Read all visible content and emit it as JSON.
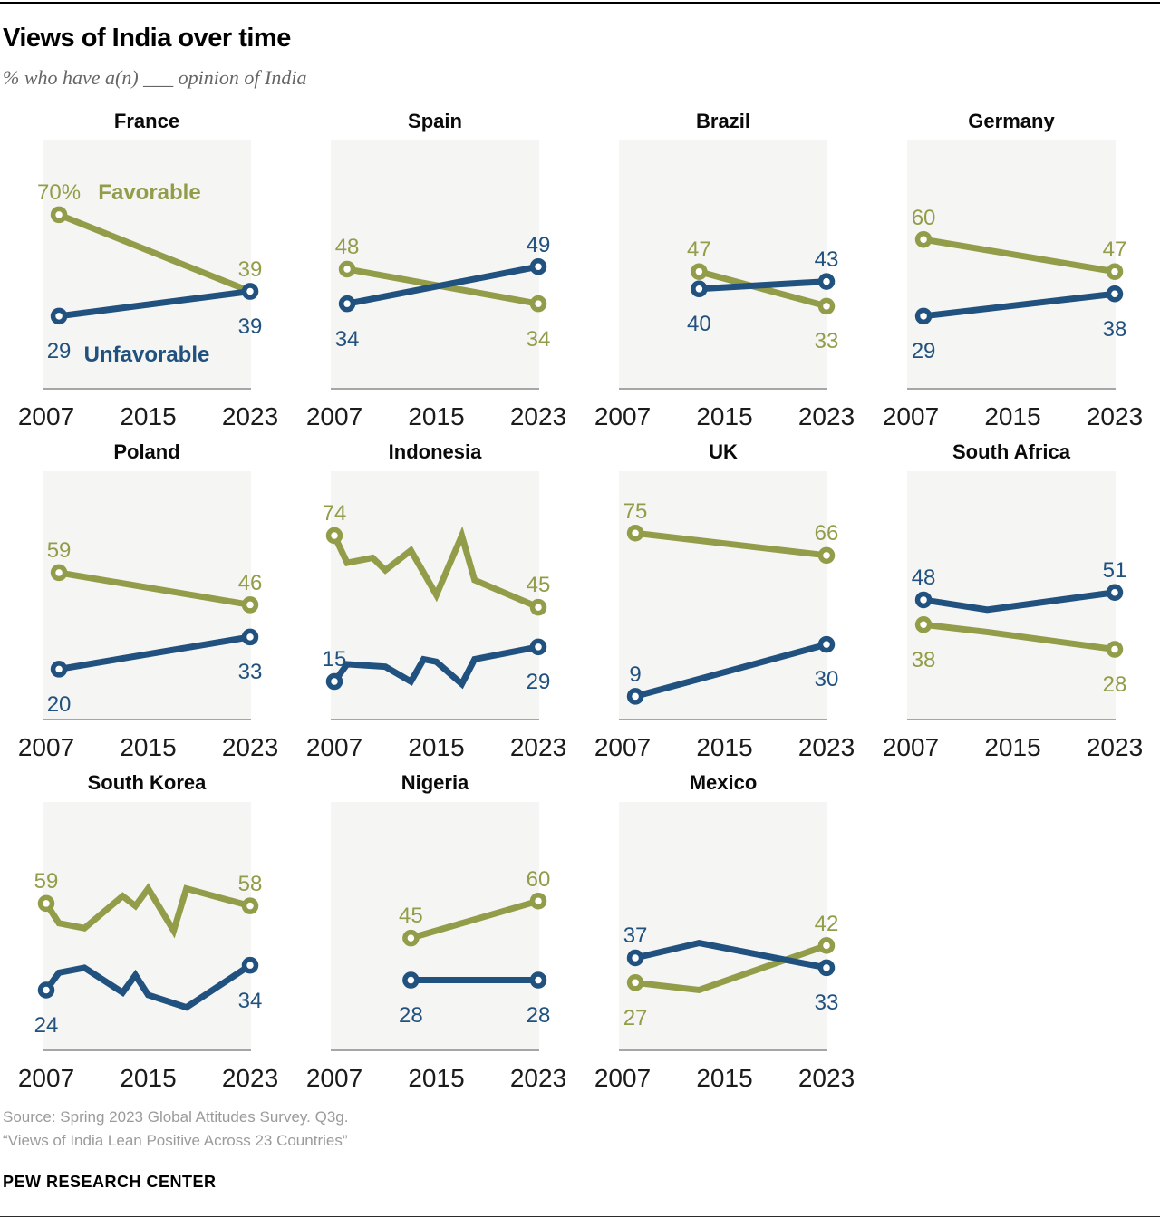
{
  "header": {
    "title": "Views of India over time",
    "subtitle": "% who have a(n) ___ opinion of India"
  },
  "colors": {
    "favorable": "#939D49",
    "unfavorable": "#21517E",
    "panel_bg": "#f5f5f3",
    "axis_line": "#a6a6a6",
    "subtitle_gray": "#666666",
    "source_gray": "#9b9b9b"
  },
  "legend": {
    "favorable": "Favorable",
    "unfavorable": "Unfavorable"
  },
  "footer": {
    "source_line1": "Source: Spring 2023 Global Attitudes Survey. Q3g.",
    "source_line2": "“Views of India Lean Positive Across 23 Countries”",
    "brand": "PEW RESEARCH CENTER"
  },
  "chart_data": {
    "type": "line",
    "x_range": [
      2007,
      2023
    ],
    "y_range": [
      0,
      100
    ],
    "x_ticks": [
      "2007",
      "2015",
      "2023"
    ],
    "x_tick_years": [
      2007,
      2015,
      2023
    ],
    "grid": false,
    "panels": [
      {
        "country": "France",
        "show_series_legend": true,
        "series": [
          {
            "name": "Favorable",
            "points": [
              [
                2008,
                70
              ],
              [
                2023,
                39
              ]
            ],
            "labels": {
              "start": {
                "text": "70%",
                "pos": "above"
              },
              "end": {
                "text": "39",
                "pos": "above"
              }
            }
          },
          {
            "name": "Unfavorable",
            "points": [
              [
                2008,
                29
              ],
              [
                2023,
                39
              ]
            ],
            "labels": {
              "start": {
                "text": "29",
                "pos": "below"
              },
              "end": {
                "text": "39",
                "pos": "below"
              }
            }
          }
        ]
      },
      {
        "country": "Spain",
        "series": [
          {
            "name": "Favorable",
            "points": [
              [
                2008,
                48
              ],
              [
                2023,
                34
              ]
            ],
            "labels": {
              "start": {
                "text": "48",
                "pos": "above"
              },
              "end": {
                "text": "34",
                "pos": "below"
              }
            }
          },
          {
            "name": "Unfavorable",
            "points": [
              [
                2008,
                34
              ],
              [
                2023,
                49
              ]
            ],
            "labels": {
              "start": {
                "text": "34",
                "pos": "below"
              },
              "end": {
                "text": "49",
                "pos": "above"
              }
            }
          }
        ]
      },
      {
        "country": "Brazil",
        "series": [
          {
            "name": "Favorable",
            "points": [
              [
                2013,
                47
              ],
              [
                2023,
                33
              ]
            ],
            "labels": {
              "start": {
                "text": "47",
                "pos": "above"
              },
              "end": {
                "text": "33",
                "pos": "below"
              }
            }
          },
          {
            "name": "Unfavorable",
            "points": [
              [
                2013,
                40
              ],
              [
                2023,
                43
              ]
            ],
            "labels": {
              "start": {
                "text": "40",
                "pos": "below"
              },
              "end": {
                "text": "43",
                "pos": "above"
              }
            }
          }
        ]
      },
      {
        "country": "Germany",
        "series": [
          {
            "name": "Favorable",
            "points": [
              [
                2008,
                60
              ],
              [
                2023,
                47
              ]
            ],
            "labels": {
              "start": {
                "text": "60",
                "pos": "above"
              },
              "end": {
                "text": "47",
                "pos": "above"
              }
            }
          },
          {
            "name": "Unfavorable",
            "points": [
              [
                2008,
                29
              ],
              [
                2023,
                38
              ]
            ],
            "labels": {
              "start": {
                "text": "29",
                "pos": "below"
              },
              "end": {
                "text": "38",
                "pos": "below"
              }
            }
          }
        ]
      },
      {
        "country": "Poland",
        "series": [
          {
            "name": "Favorable",
            "points": [
              [
                2008,
                59
              ],
              [
                2023,
                46
              ]
            ],
            "labels": {
              "start": {
                "text": "59",
                "pos": "above"
              },
              "end": {
                "text": "46",
                "pos": "above"
              }
            }
          },
          {
            "name": "Unfavorable",
            "points": [
              [
                2008,
                20
              ],
              [
                2023,
                33
              ]
            ],
            "labels": {
              "start": {
                "text": "20",
                "pos": "below"
              },
              "end": {
                "text": "33",
                "pos": "below"
              }
            }
          }
        ]
      },
      {
        "country": "Indonesia",
        "series": [
          {
            "name": "Favorable",
            "points": [
              [
                2007,
                74
              ],
              [
                2008,
                63
              ],
              [
                2010,
                65
              ],
              [
                2011,
                60
              ],
              [
                2013,
                68
              ],
              [
                2015,
                50
              ],
              [
                2017,
                74
              ],
              [
                2018,
                56
              ],
              [
                2023,
                45
              ]
            ],
            "labels": {
              "start": {
                "text": "74",
                "pos": "above"
              },
              "end": {
                "text": "45",
                "pos": "above"
              }
            }
          },
          {
            "name": "Unfavorable",
            "points": [
              [
                2007,
                15
              ],
              [
                2008,
                22
              ],
              [
                2011,
                21
              ],
              [
                2013,
                15
              ],
              [
                2014,
                24
              ],
              [
                2015,
                23
              ],
              [
                2017,
                14
              ],
              [
                2018,
                24
              ],
              [
                2023,
                29
              ]
            ],
            "labels": {
              "start": {
                "text": "15",
                "pos": "above"
              },
              "end": {
                "text": "29",
                "pos": "below"
              }
            }
          }
        ]
      },
      {
        "country": "UK",
        "series": [
          {
            "name": "Favorable",
            "points": [
              [
                2008,
                75
              ],
              [
                2023,
                66
              ]
            ],
            "labels": {
              "start": {
                "text": "75",
                "pos": "above"
              },
              "end": {
                "text": "66",
                "pos": "above"
              }
            }
          },
          {
            "name": "Unfavorable",
            "points": [
              [
                2008,
                9
              ],
              [
                2023,
                30
              ]
            ],
            "labels": {
              "start": {
                "text": "9",
                "pos": "above"
              },
              "end": {
                "text": "30",
                "pos": "below"
              }
            }
          }
        ]
      },
      {
        "country": "South Africa",
        "series": [
          {
            "name": "Favorable",
            "points": [
              [
                2008,
                38
              ],
              [
                2013,
                35
              ],
              [
                2023,
                28
              ]
            ],
            "labels": {
              "start": {
                "text": "38",
                "pos": "below"
              },
              "end": {
                "text": "28",
                "pos": "below"
              }
            }
          },
          {
            "name": "Unfavorable",
            "points": [
              [
                2008,
                48
              ],
              [
                2013,
                44
              ],
              [
                2023,
                51
              ]
            ],
            "labels": {
              "start": {
                "text": "48",
                "pos": "above"
              },
              "end": {
                "text": "51",
                "pos": "above"
              }
            }
          }
        ]
      },
      {
        "country": "South Korea",
        "series": [
          {
            "name": "Favorable",
            "points": [
              [
                2007,
                59
              ],
              [
                2008,
                51
              ],
              [
                2010,
                49
              ],
              [
                2013,
                62
              ],
              [
                2014,
                58
              ],
              [
                2015,
                65
              ],
              [
                2017,
                48
              ],
              [
                2018,
                65
              ],
              [
                2023,
                58
              ]
            ],
            "labels": {
              "start": {
                "text": "59",
                "pos": "above"
              },
              "end": {
                "text": "58",
                "pos": "above"
              }
            }
          },
          {
            "name": "Unfavorable",
            "points": [
              [
                2007,
                24
              ],
              [
                2008,
                31
              ],
              [
                2010,
                33
              ],
              [
                2013,
                23
              ],
              [
                2014,
                30
              ],
              [
                2015,
                22
              ],
              [
                2018,
                17
              ],
              [
                2023,
                34
              ]
            ],
            "labels": {
              "start": {
                "text": "24",
                "pos": "below"
              },
              "end": {
                "text": "34",
                "pos": "below"
              }
            }
          }
        ]
      },
      {
        "country": "Nigeria",
        "series": [
          {
            "name": "Favorable",
            "points": [
              [
                2013,
                45
              ],
              [
                2023,
                60
              ]
            ],
            "labels": {
              "start": {
                "text": "45",
                "pos": "above"
              },
              "end": {
                "text": "60",
                "pos": "above"
              }
            }
          },
          {
            "name": "Unfavorable",
            "points": [
              [
                2013,
                28
              ],
              [
                2023,
                28
              ]
            ],
            "labels": {
              "start": {
                "text": "28",
                "pos": "below"
              },
              "end": {
                "text": "28",
                "pos": "below"
              }
            }
          }
        ]
      },
      {
        "country": "Mexico",
        "series": [
          {
            "name": "Favorable",
            "points": [
              [
                2008,
                27
              ],
              [
                2013,
                24
              ],
              [
                2023,
                42
              ]
            ],
            "labels": {
              "start": {
                "text": "27",
                "pos": "below"
              },
              "end": {
                "text": "42",
                "pos": "above"
              }
            }
          },
          {
            "name": "Unfavorable",
            "points": [
              [
                2008,
                37
              ],
              [
                2013,
                43
              ],
              [
                2023,
                33
              ]
            ],
            "labels": {
              "start": {
                "text": "37",
                "pos": "above"
              },
              "end": {
                "text": "33",
                "pos": "below"
              }
            }
          }
        ]
      }
    ]
  }
}
